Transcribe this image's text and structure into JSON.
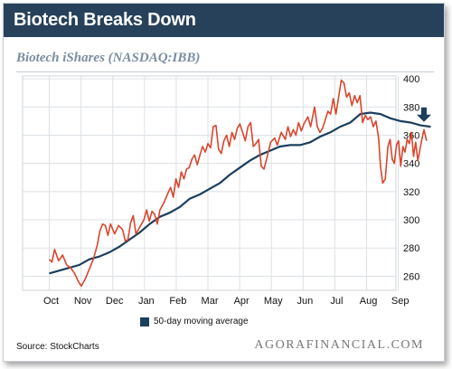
{
  "header": {
    "title": "Biotech Breaks Down",
    "subtitle": "Biotech iShares (NASDAQ:IBB)"
  },
  "legend": {
    "label": "50-day moving average"
  },
  "footer": {
    "source": "Source: StockCharts",
    "brand": "AGORAFINANCIAL.COM"
  },
  "colors": {
    "price": "#d9462e",
    "moving_average": "#1b3f5c",
    "title_bar": "#27415a",
    "grid": "#dde1e5"
  },
  "chart_data": {
    "type": "line",
    "title": "Biotech Breaks Down",
    "subtitle": "Biotech iShares (NASDAQ:IBB)",
    "x_tick_labels": [
      "Oct",
      "Nov",
      "Dec",
      "Jan",
      "Feb",
      "Mar",
      "Apr",
      "May",
      "Jun",
      "Jul",
      "Aug",
      "Sep"
    ],
    "y_ticks": [
      260,
      280,
      300,
      320,
      340,
      360,
      380,
      400
    ],
    "ylim": [
      250,
      402
    ],
    "y_axis_position": "right",
    "grid": true,
    "legend": "bottom-left",
    "annotation": "down-arrow-marker",
    "series": [
      {
        "role": "price",
        "points": [
          [
            0.0,
            272
          ],
          [
            0.1,
            270
          ],
          [
            0.2,
            279
          ],
          [
            0.35,
            271
          ],
          [
            0.5,
            275
          ],
          [
            0.65,
            268
          ],
          [
            0.8,
            266
          ],
          [
            0.95,
            262
          ],
          [
            1.1,
            256
          ],
          [
            1.2,
            253
          ],
          [
            1.35,
            258
          ],
          [
            1.5,
            265
          ],
          [
            1.65,
            272
          ],
          [
            1.8,
            282
          ],
          [
            1.9,
            292
          ],
          [
            2.0,
            297
          ],
          [
            2.1,
            296
          ],
          [
            2.2,
            289
          ],
          [
            2.3,
            297
          ],
          [
            2.45,
            290
          ],
          [
            2.6,
            296
          ],
          [
            2.75,
            293
          ],
          [
            2.85,
            285
          ],
          [
            2.95,
            286
          ],
          [
            3.05,
            298
          ],
          [
            3.15,
            303
          ],
          [
            3.25,
            290
          ],
          [
            3.4,
            295
          ],
          [
            3.55,
            300
          ],
          [
            3.65,
            307
          ],
          [
            3.75,
            299
          ],
          [
            3.85,
            306
          ],
          [
            3.95,
            304
          ],
          [
            4.05,
            297
          ],
          [
            4.15,
            307
          ],
          [
            4.3,
            312
          ],
          [
            4.45,
            319
          ],
          [
            4.55,
            323
          ],
          [
            4.65,
            316
          ],
          [
            4.75,
            329
          ],
          [
            4.85,
            323
          ],
          [
            4.95,
            334
          ],
          [
            5.05,
            329
          ],
          [
            5.15,
            336
          ],
          [
            5.25,
            337
          ],
          [
            5.35,
            343
          ],
          [
            5.45,
            346
          ],
          [
            5.55,
            339
          ],
          [
            5.65,
            346
          ],
          [
            5.75,
            352
          ],
          [
            5.85,
            348
          ],
          [
            5.95,
            354
          ],
          [
            6.05,
            351
          ],
          [
            6.15,
            366
          ],
          [
            6.25,
            367
          ],
          [
            6.35,
            350
          ],
          [
            6.45,
            347
          ],
          [
            6.55,
            356
          ],
          [
            6.65,
            360
          ],
          [
            6.75,
            352
          ],
          [
            6.85,
            362
          ],
          [
            6.95,
            357
          ],
          [
            7.05,
            365
          ],
          [
            7.15,
            368
          ],
          [
            7.25,
            362
          ],
          [
            7.35,
            356
          ],
          [
            7.45,
            366
          ],
          [
            7.55,
            369
          ],
          [
            7.65,
            352
          ],
          [
            7.75,
            354
          ],
          [
            7.85,
            357
          ],
          [
            7.95,
            338
          ],
          [
            8.05,
            336
          ],
          [
            8.15,
            343
          ],
          [
            8.3,
            355
          ],
          [
            8.45,
            358
          ],
          [
            8.55,
            353
          ],
          [
            8.7,
            362
          ],
          [
            8.85,
            357
          ],
          [
            8.95,
            366
          ],
          [
            9.05,
            359
          ],
          [
            9.15,
            364
          ],
          [
            9.25,
            360
          ],
          [
            9.35,
            369
          ],
          [
            9.45,
            363
          ],
          [
            9.55,
            368
          ],
          [
            9.7,
            373
          ],
          [
            9.8,
            366
          ],
          [
            9.95,
            380
          ],
          [
            10.05,
            366
          ],
          [
            10.15,
            362
          ],
          [
            10.25,
            365
          ],
          [
            10.35,
            371
          ],
          [
            10.45,
            377
          ],
          [
            10.55,
            375
          ],
          [
            10.65,
            386
          ],
          [
            10.75,
            375
          ],
          [
            10.85,
            387
          ],
          [
            10.95,
            399
          ],
          [
            11.05,
            397
          ],
          [
            11.15,
            387
          ],
          [
            11.25,
            390
          ],
          [
            11.35,
            381
          ],
          [
            11.45,
            388
          ],
          [
            11.55,
            383
          ],
          [
            11.65,
            388
          ],
          [
            11.75,
            369
          ],
          [
            11.85,
            374
          ],
          [
            11.95,
            371
          ],
          [
            12.05,
            373
          ],
          [
            12.15,
            366
          ],
          [
            12.25,
            370
          ],
          [
            12.35,
            358
          ],
          [
            12.42,
            338
          ],
          [
            12.5,
            326
          ],
          [
            12.6,
            329
          ],
          [
            12.7,
            352
          ],
          [
            12.78,
            357
          ],
          [
            12.86,
            343
          ],
          [
            12.94,
            340
          ],
          [
            13.02,
            353
          ],
          [
            13.1,
            356
          ],
          [
            13.18,
            338
          ],
          [
            13.26,
            352
          ],
          [
            13.34,
            348
          ],
          [
            13.42,
            357
          ],
          [
            13.5,
            354
          ],
          [
            13.58,
            362
          ],
          [
            13.66,
            345
          ],
          [
            13.74,
            355
          ],
          [
            13.82,
            342
          ],
          [
            13.9,
            350
          ],
          [
            13.97,
            357
          ],
          [
            14.05,
            364
          ],
          [
            14.15,
            356
          ]
        ]
      },
      {
        "name": "50-day moving average",
        "points": [
          [
            0.0,
            262
          ],
          [
            0.5,
            264
          ],
          [
            1.0,
            266
          ],
          [
            1.5,
            268
          ],
          [
            2.0,
            272
          ],
          [
            2.5,
            274
          ],
          [
            3.0,
            277
          ],
          [
            3.5,
            281
          ],
          [
            4.0,
            286
          ],
          [
            4.5,
            291
          ],
          [
            5.0,
            297
          ],
          [
            5.5,
            302
          ],
          [
            6.0,
            305
          ],
          [
            6.5,
            309
          ],
          [
            7.0,
            315
          ],
          [
            7.5,
            318
          ],
          [
            8.0,
            322
          ],
          [
            8.5,
            326
          ],
          [
            9.0,
            332
          ],
          [
            9.5,
            337
          ],
          [
            10.0,
            342
          ],
          [
            10.5,
            346
          ],
          [
            11.0,
            349
          ],
          [
            11.5,
            352
          ],
          [
            12.0,
            353
          ],
          [
            12.5,
            353
          ],
          [
            13.0,
            355
          ],
          [
            13.5,
            359
          ],
          [
            14.0,
            362
          ],
          [
            14.5,
            366
          ],
          [
            15.0,
            369
          ],
          [
            15.5,
            375
          ],
          [
            16.0,
            376
          ],
          [
            16.5,
            375
          ],
          [
            17.0,
            372
          ],
          [
            17.5,
            370
          ],
          [
            18.0,
            369
          ],
          [
            18.5,
            367
          ],
          [
            19.0,
            366
          ]
        ]
      }
    ]
  }
}
